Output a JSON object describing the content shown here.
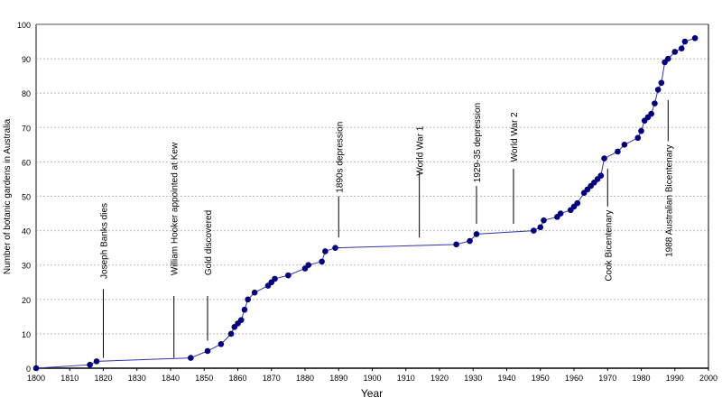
{
  "chart_data": {
    "type": "line",
    "title": "",
    "xlabel": "Year",
    "ylabel": "Number of botanic gardens in Australia",
    "xlim": [
      1800,
      2000
    ],
    "ylim": [
      0,
      100
    ],
    "xticks": [
      1800,
      1810,
      1820,
      1830,
      1840,
      1850,
      1860,
      1870,
      1880,
      1890,
      1900,
      1910,
      1920,
      1930,
      1940,
      1950,
      1960,
      1970,
      1980,
      1990,
      2000
    ],
    "yticks": [
      0,
      10,
      20,
      30,
      40,
      50,
      60,
      70,
      80,
      90,
      100
    ],
    "grid": "horizontal dashed",
    "legend": "none",
    "colors": {
      "series": "#000080",
      "line": "#3333aa",
      "grid": "#bbbbbb"
    },
    "series": [
      {
        "x": [
          1800,
          1816,
          1818,
          1846,
          1851,
          1855,
          1858,
          1859,
          1860,
          1861,
          1862,
          1863,
          1865,
          1869,
          1870,
          1871,
          1875,
          1880,
          1881,
          1885,
          1886,
          1889,
          1925,
          1929,
          1931,
          1948,
          1950,
          1951,
          1955,
          1956,
          1959,
          1960,
          1961,
          1963,
          1964,
          1965,
          1966,
          1967,
          1968,
          1969,
          1973,
          1975,
          1979,
          1980,
          1981,
          1982,
          1983,
          1984,
          1985,
          1986,
          1987,
          1988,
          1990,
          1992,
          1993,
          1996
        ],
        "y": [
          0,
          1,
          2,
          3,
          5,
          7,
          10,
          12,
          13,
          14,
          17,
          20,
          22,
          24,
          25,
          26,
          27,
          29,
          30,
          31,
          34,
          35,
          36,
          37,
          39,
          40,
          41,
          43,
          44,
          45,
          46,
          47,
          48,
          51,
          52,
          53,
          54,
          55,
          56,
          61,
          63,
          65,
          67,
          69,
          72,
          73,
          74,
          77,
          81,
          83,
          89,
          90,
          92,
          93,
          95,
          96
        ]
      }
    ],
    "annotations": [
      {
        "text": "Joseph Banks dies",
        "x": 1820,
        "side": "above",
        "label_bottom": 26,
        "line": [
          3,
          23
        ]
      },
      {
        "text": "William Hooker appointed at Kew",
        "x": 1841,
        "side": "above",
        "label_bottom": 27,
        "line": [
          3,
          21
        ]
      },
      {
        "text": "Gold discovered",
        "x": 1851,
        "side": "above",
        "label_bottom": 27,
        "line": [
          8,
          21
        ]
      },
      {
        "text": "1890s depression",
        "x": 1890,
        "side": "above",
        "label_bottom": 51,
        "line": [
          38,
          50
        ]
      },
      {
        "text": "World War 1",
        "x": 1914,
        "side": "above",
        "label_bottom": 56,
        "line": [
          38,
          57
        ]
      },
      {
        "text": "1929-35 depression",
        "x": 1931,
        "side": "above",
        "label_bottom": 54,
        "line": [
          42,
          53
        ]
      },
      {
        "text": "World War 2",
        "x": 1942,
        "side": "above",
        "label_bottom": 60,
        "line": [
          42,
          58
        ]
      },
      {
        "text": "Cook Bicentenary",
        "x": 1970,
        "side": "below",
        "label_top": 46,
        "line": [
          47,
          58
        ]
      },
      {
        "text": "1988 Australian Bicentenary",
        "x": 1988,
        "side": "below",
        "label_top": 65,
        "line": [
          66,
          78
        ]
      }
    ]
  }
}
